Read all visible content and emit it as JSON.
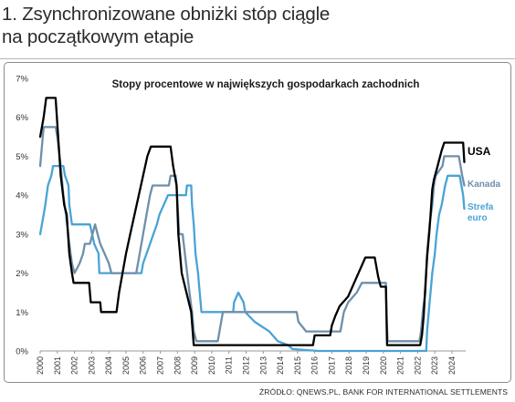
{
  "heading": {
    "line1": "1. Zsynchronizowane obniżki stóp ciągle",
    "line2": "na początkowym etapie"
  },
  "source": "ŹRÓDŁO: QNEWS.PL, BANK FOR INTERNATIONAL SETTLEMENTS",
  "chart_data": {
    "type": "line",
    "title": "Stopy procentowe w największych gospodarkach zachodnich",
    "xlim": [
      2000,
      2024.8
    ],
    "ylim": [
      0,
      7
    ],
    "x_ticks": [
      "2000",
      "2001",
      "2002",
      "2003",
      "2004",
      "2005",
      "2006",
      "2007",
      "2008",
      "2009",
      "2010",
      "2011",
      "2012",
      "2013",
      "2014",
      "2015",
      "2016",
      "2017",
      "2018",
      "2019",
      "2020",
      "2021",
      "2022",
      "2023",
      "2024"
    ],
    "y_ticks": [
      "0%",
      "1%",
      "2%",
      "3%",
      "4%",
      "5%",
      "6%",
      "7%"
    ],
    "grid": false,
    "legend_placement": "right, next to line ends",
    "series": [
      {
        "name": "USA",
        "color": "#000000",
        "points": [
          [
            2000.0,
            5.5
          ],
          [
            2000.1,
            5.75
          ],
          [
            2000.2,
            6.0
          ],
          [
            2000.35,
            6.5
          ],
          [
            2000.9,
            6.5
          ],
          [
            2001.05,
            5.5
          ],
          [
            2001.2,
            4.5
          ],
          [
            2001.4,
            3.75
          ],
          [
            2001.55,
            3.5
          ],
          [
            2001.7,
            2.5
          ],
          [
            2001.85,
            2.0
          ],
          [
            2001.95,
            1.75
          ],
          [
            2002.85,
            1.75
          ],
          [
            2002.95,
            1.25
          ],
          [
            2003.5,
            1.25
          ],
          [
            2003.55,
            1.0
          ],
          [
            2004.45,
            1.0
          ],
          [
            2004.6,
            1.5
          ],
          [
            2004.8,
            2.0
          ],
          [
            2005.0,
            2.5
          ],
          [
            2005.25,
            3.0
          ],
          [
            2005.5,
            3.5
          ],
          [
            2005.75,
            4.0
          ],
          [
            2006.0,
            4.5
          ],
          [
            2006.25,
            5.0
          ],
          [
            2006.45,
            5.25
          ],
          [
            2007.6,
            5.25
          ],
          [
            2007.75,
            4.75
          ],
          [
            2007.95,
            4.25
          ],
          [
            2008.05,
            3.0
          ],
          [
            2008.25,
            2.0
          ],
          [
            2008.8,
            1.0
          ],
          [
            2008.95,
            0.15
          ],
          [
            2015.9,
            0.15
          ],
          [
            2016.0,
            0.4
          ],
          [
            2016.9,
            0.4
          ],
          [
            2017.0,
            0.65
          ],
          [
            2017.2,
            0.9
          ],
          [
            2017.45,
            1.15
          ],
          [
            2017.95,
            1.4
          ],
          [
            2018.2,
            1.65
          ],
          [
            2018.45,
            1.9
          ],
          [
            2018.7,
            2.15
          ],
          [
            2018.95,
            2.4
          ],
          [
            2019.5,
            2.4
          ],
          [
            2019.6,
            2.15
          ],
          [
            2019.7,
            1.9
          ],
          [
            2019.85,
            1.65
          ],
          [
            2020.15,
            1.65
          ],
          [
            2020.22,
            0.15
          ],
          [
            2022.15,
            0.15
          ],
          [
            2022.25,
            0.4
          ],
          [
            2022.35,
            0.9
          ],
          [
            2022.45,
            1.65
          ],
          [
            2022.55,
            2.4
          ],
          [
            2022.7,
            3.15
          ],
          [
            2022.85,
            4.15
          ],
          [
            2022.95,
            4.4
          ],
          [
            2023.1,
            4.65
          ],
          [
            2023.25,
            4.9
          ],
          [
            2023.4,
            5.15
          ],
          [
            2023.55,
            5.35
          ],
          [
            2024.65,
            5.35
          ],
          [
            2024.72,
            4.85
          ]
        ]
      },
      {
        "name": "Kanada",
        "color": "#6e8fab",
        "points": [
          [
            2000.0,
            4.75
          ],
          [
            2000.1,
            5.25
          ],
          [
            2000.2,
            5.75
          ],
          [
            2000.9,
            5.75
          ],
          [
            2001.0,
            5.5
          ],
          [
            2001.2,
            4.75
          ],
          [
            2001.35,
            4.0
          ],
          [
            2001.5,
            3.5
          ],
          [
            2001.7,
            2.75
          ],
          [
            2001.85,
            2.25
          ],
          [
            2002.0,
            2.0
          ],
          [
            2002.3,
            2.25
          ],
          [
            2002.5,
            2.5
          ],
          [
            2002.6,
            2.75
          ],
          [
            2002.9,
            2.75
          ],
          [
            2003.05,
            3.0
          ],
          [
            2003.2,
            3.25
          ],
          [
            2003.35,
            3.0
          ],
          [
            2003.5,
            2.75
          ],
          [
            2003.75,
            2.5
          ],
          [
            2004.0,
            2.25
          ],
          [
            2004.15,
            2.0
          ],
          [
            2005.6,
            2.0
          ],
          [
            2005.8,
            2.5
          ],
          [
            2006.0,
            3.0
          ],
          [
            2006.2,
            3.5
          ],
          [
            2006.4,
            4.0
          ],
          [
            2006.55,
            4.25
          ],
          [
            2007.5,
            4.25
          ],
          [
            2007.6,
            4.5
          ],
          [
            2007.9,
            4.5
          ],
          [
            2007.95,
            4.25
          ],
          [
            2008.1,
            3.0
          ],
          [
            2008.3,
            3.0
          ],
          [
            2008.5,
            2.25
          ],
          [
            2008.7,
            1.5
          ],
          [
            2008.85,
            1.0
          ],
          [
            2008.95,
            0.5
          ],
          [
            2009.1,
            0.25
          ],
          [
            2010.35,
            0.25
          ],
          [
            2010.45,
            0.5
          ],
          [
            2010.55,
            0.75
          ],
          [
            2010.65,
            1.0
          ],
          [
            2014.95,
            1.0
          ],
          [
            2015.05,
            0.75
          ],
          [
            2015.5,
            0.5
          ],
          [
            2017.5,
            0.5
          ],
          [
            2017.6,
            0.75
          ],
          [
            2017.7,
            1.0
          ],
          [
            2017.95,
            1.25
          ],
          [
            2018.45,
            1.5
          ],
          [
            2018.75,
            1.75
          ],
          [
            2020.15,
            1.75
          ],
          [
            2020.2,
            0.75
          ],
          [
            2020.25,
            0.25
          ],
          [
            2022.1,
            0.25
          ],
          [
            2022.2,
            0.5
          ],
          [
            2022.3,
            1.0
          ],
          [
            2022.45,
            1.5
          ],
          [
            2022.55,
            2.5
          ],
          [
            2022.7,
            3.25
          ],
          [
            2022.85,
            3.75
          ],
          [
            2022.95,
            4.25
          ],
          [
            2023.05,
            4.5
          ],
          [
            2023.45,
            4.75
          ],
          [
            2023.55,
            5.0
          ],
          [
            2024.4,
            5.0
          ],
          [
            2024.5,
            4.75
          ],
          [
            2024.6,
            4.5
          ],
          [
            2024.72,
            4.25
          ]
        ]
      },
      {
        "name": "Strefa euro",
        "color": "#4aa3d6",
        "points": [
          [
            2000.0,
            3.0
          ],
          [
            2000.1,
            3.25
          ],
          [
            2000.2,
            3.5
          ],
          [
            2000.3,
            3.75
          ],
          [
            2000.45,
            4.25
          ],
          [
            2000.65,
            4.5
          ],
          [
            2000.75,
            4.75
          ],
          [
            2001.35,
            4.75
          ],
          [
            2001.45,
            4.5
          ],
          [
            2001.65,
            4.25
          ],
          [
            2001.7,
            3.75
          ],
          [
            2001.85,
            3.25
          ],
          [
            2002.9,
            3.25
          ],
          [
            2003.15,
            2.75
          ],
          [
            2003.4,
            2.5
          ],
          [
            2003.45,
            2.0
          ],
          [
            2005.9,
            2.0
          ],
          [
            2006.0,
            2.25
          ],
          [
            2006.2,
            2.5
          ],
          [
            2006.4,
            2.75
          ],
          [
            2006.6,
            3.0
          ],
          [
            2006.8,
            3.25
          ],
          [
            2006.95,
            3.5
          ],
          [
            2007.2,
            3.75
          ],
          [
            2007.45,
            4.0
          ],
          [
            2008.5,
            4.0
          ],
          [
            2008.55,
            4.25
          ],
          [
            2008.8,
            4.25
          ],
          [
            2008.85,
            3.75
          ],
          [
            2008.95,
            3.25
          ],
          [
            2009.05,
            2.5
          ],
          [
            2009.2,
            2.0
          ],
          [
            2009.3,
            1.5
          ],
          [
            2009.35,
            1.25
          ],
          [
            2009.4,
            1.0
          ],
          [
            2011.25,
            1.0
          ],
          [
            2011.3,
            1.25
          ],
          [
            2011.55,
            1.5
          ],
          [
            2011.85,
            1.25
          ],
          [
            2011.95,
            1.0
          ],
          [
            2012.5,
            0.75
          ],
          [
            2013.35,
            0.5
          ],
          [
            2013.85,
            0.25
          ],
          [
            2014.45,
            0.15
          ],
          [
            2014.7,
            0.05
          ],
          [
            2016.2,
            0.0
          ],
          [
            2022.5,
            0.0
          ],
          [
            2022.55,
            0.5
          ],
          [
            2022.7,
            1.25
          ],
          [
            2022.85,
            2.0
          ],
          [
            2023.0,
            2.5
          ],
          [
            2023.1,
            3.0
          ],
          [
            2023.25,
            3.5
          ],
          [
            2023.4,
            3.75
          ],
          [
            2023.6,
            4.25
          ],
          [
            2023.75,
            4.5
          ],
          [
            2024.45,
            4.5
          ],
          [
            2024.55,
            4.25
          ],
          [
            2024.65,
            4.0
          ],
          [
            2024.72,
            3.65
          ]
        ]
      }
    ]
  }
}
